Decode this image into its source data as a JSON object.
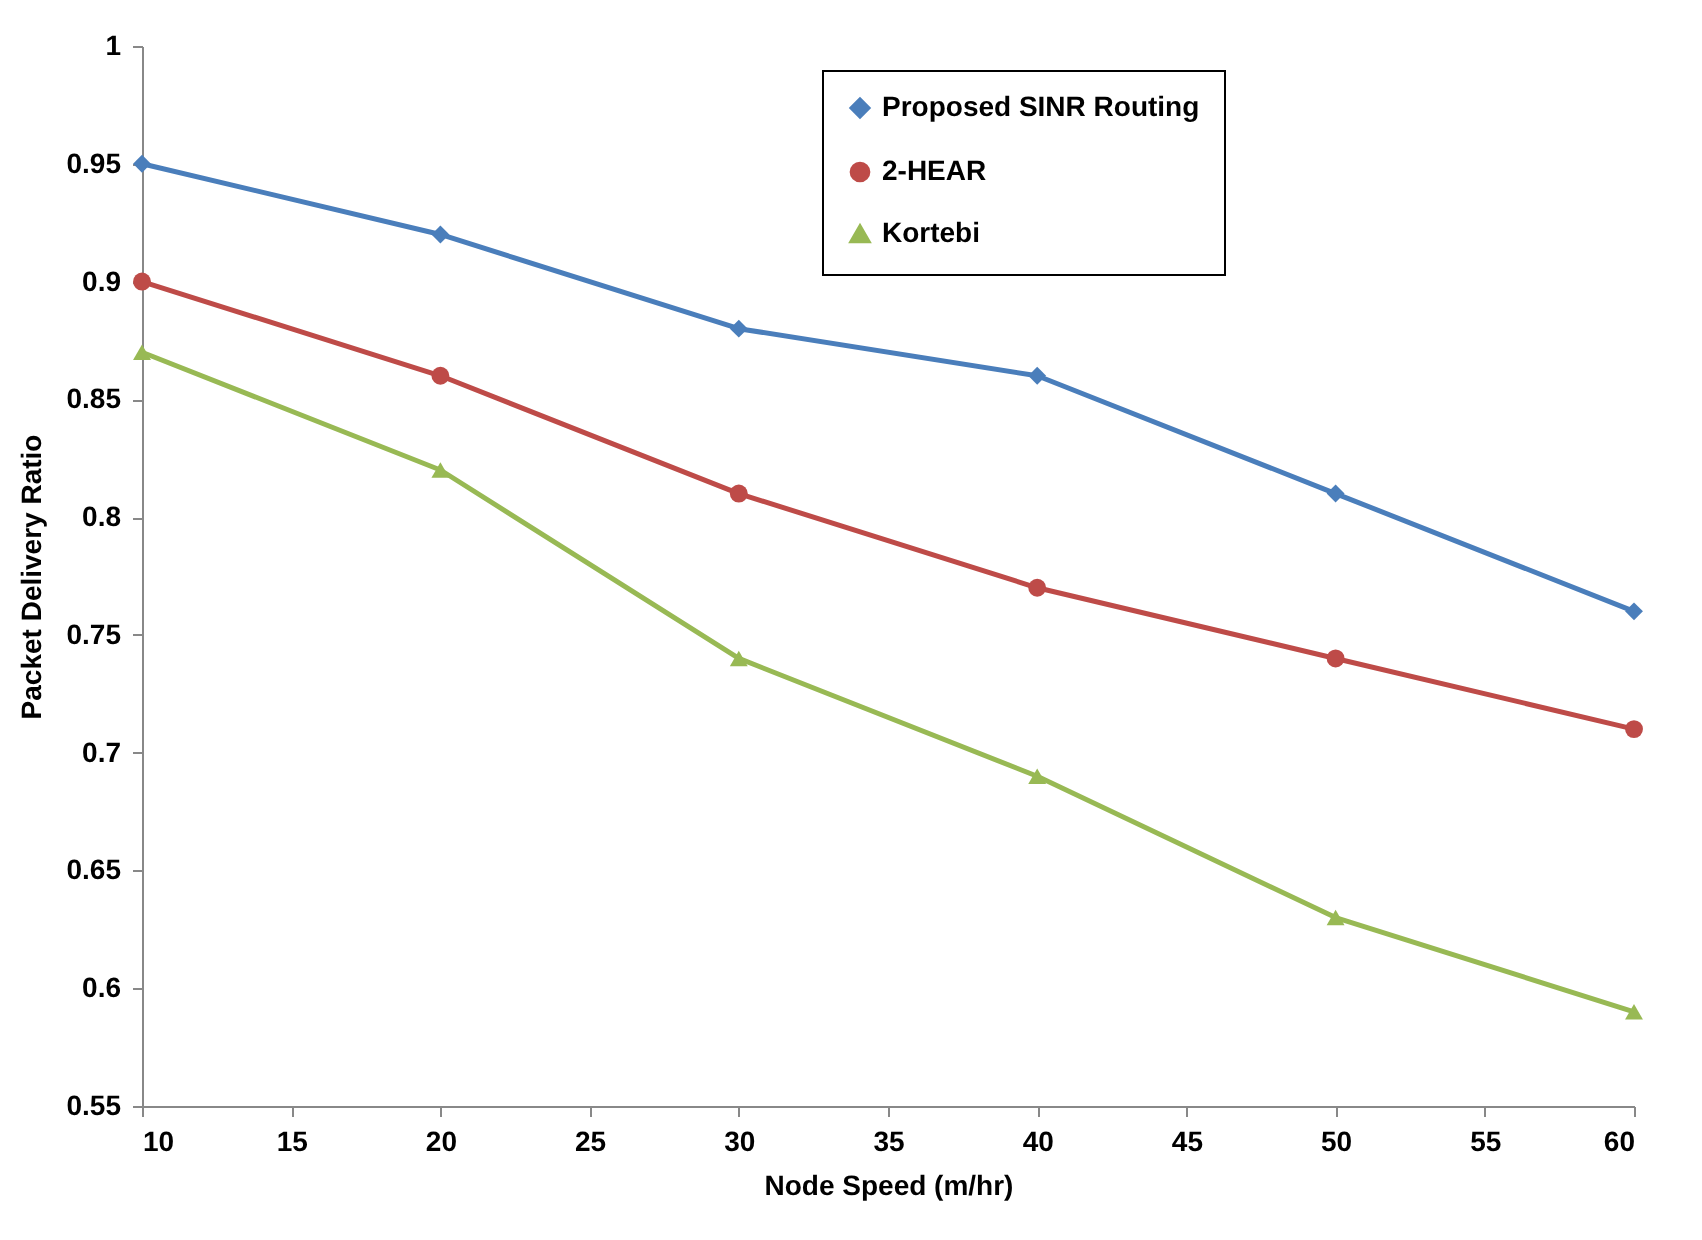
{
  "chart_data": {
    "type": "line",
    "xlabel": "Node Speed (m/hr)",
    "ylabel": "Packet Delivery Ratio",
    "x": [
      10,
      20,
      30,
      40,
      50,
      60
    ],
    "series": [
      {
        "name": "Proposed SINR Routing",
        "color": "#4a7ebb",
        "marker": "diamond",
        "values": [
          0.95,
          0.92,
          0.88,
          0.86,
          0.81,
          0.76
        ]
      },
      {
        "name": "2-HEAR",
        "color": "#be4b48",
        "marker": "circle",
        "values": [
          0.9,
          0.86,
          0.81,
          0.77,
          0.74,
          0.71
        ]
      },
      {
        "name": "Kortebi",
        "color": "#98b954",
        "marker": "triangle",
        "values": [
          0.87,
          0.82,
          0.74,
          0.69,
          0.63,
          0.59
        ]
      }
    ],
    "xlim": [
      10,
      60
    ],
    "xticks": [
      10,
      15,
      20,
      25,
      30,
      35,
      40,
      45,
      50,
      55,
      60
    ],
    "ylim": [
      0.55,
      1
    ],
    "yticks": [
      0.55,
      0.6,
      0.65,
      0.7,
      0.75,
      0.8,
      0.85,
      0.9,
      0.95,
      1
    ],
    "grid": false,
    "legend": "top right"
  }
}
